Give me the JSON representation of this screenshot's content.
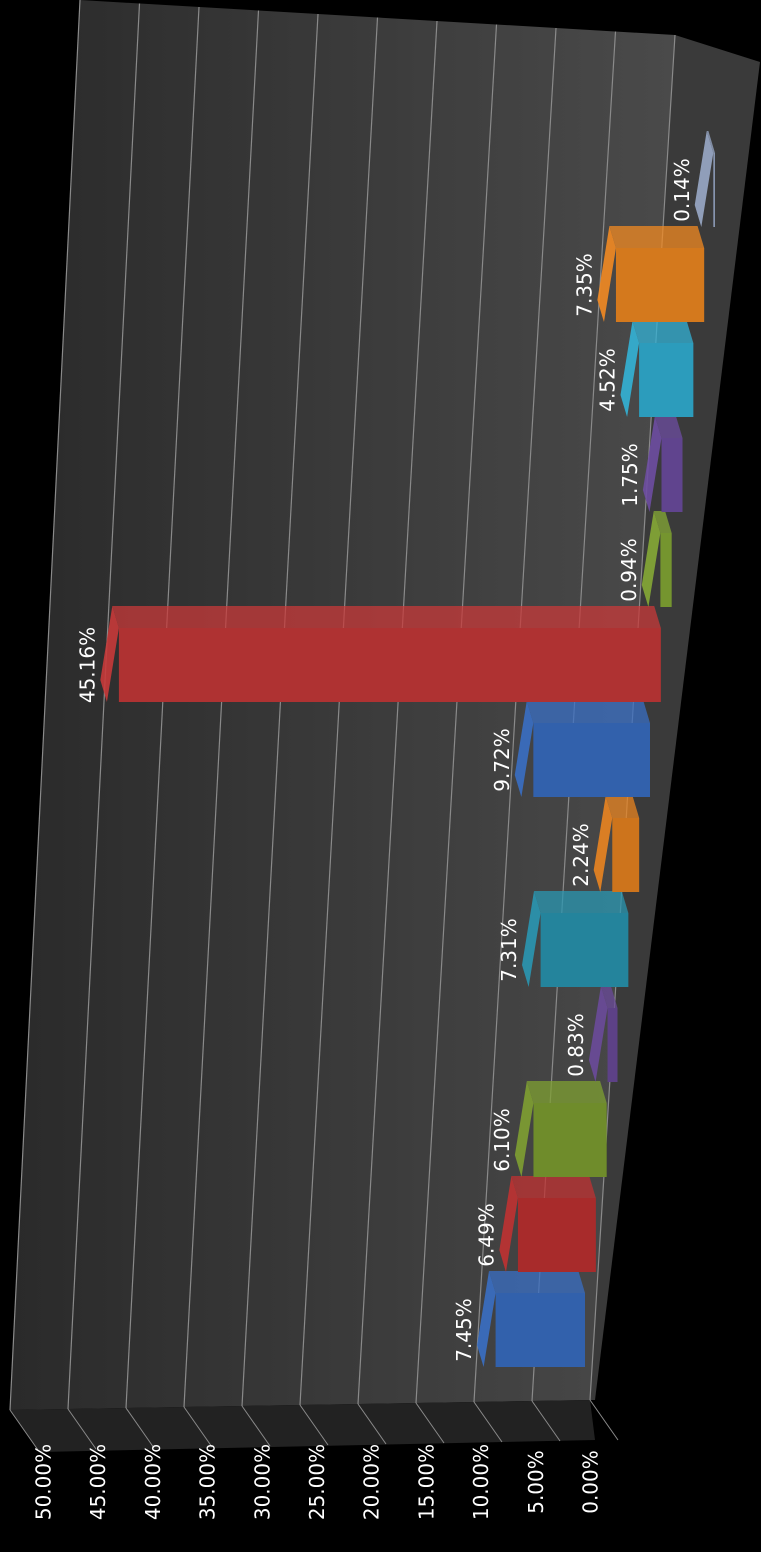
{
  "chart_data": {
    "type": "bar3d",
    "values": [
      7.45,
      6.49,
      6.1,
      0.83,
      7.31,
      2.24,
      9.72,
      45.16,
      0.94,
      1.75,
      4.52,
      7.35,
      0.14
    ],
    "value_labels": [
      "7.45%",
      "6.49%",
      "6.10%",
      "0.83%",
      "7.31%",
      "2.24%",
      "9.72%",
      "45.16%",
      "0.94%",
      "1.75%",
      "4.52%",
      "7.35%",
      "0.14%"
    ],
    "colors": [
      "#3a6fc4",
      "#c03232",
      "#7fa032",
      "#6a4a9a",
      "#2a97b2",
      "#ea8420",
      "#3a6fc4",
      "#c83a3a",
      "#86aa36",
      "#6e4ea2",
      "#33b2d6",
      "#f28a22",
      "#9aaac8"
    ],
    "ylim": [
      0,
      50
    ],
    "yticks": [
      {
        "value": 0,
        "label": "0.00%"
      },
      {
        "value": 5,
        "label": "5.00%"
      },
      {
        "value": 10,
        "label": "10.00%"
      },
      {
        "value": 15,
        "label": "15.00%"
      },
      {
        "value": 20,
        "label": "20.00%"
      },
      {
        "value": 25,
        "label": "25.00%"
      },
      {
        "value": 30,
        "label": "30.00%"
      },
      {
        "value": 35,
        "label": "35.00%"
      },
      {
        "value": 40,
        "label": "40.00%"
      },
      {
        "value": 45,
        "label": "45.00%"
      },
      {
        "value": 50,
        "label": "50.00%"
      }
    ],
    "grid": true
  }
}
